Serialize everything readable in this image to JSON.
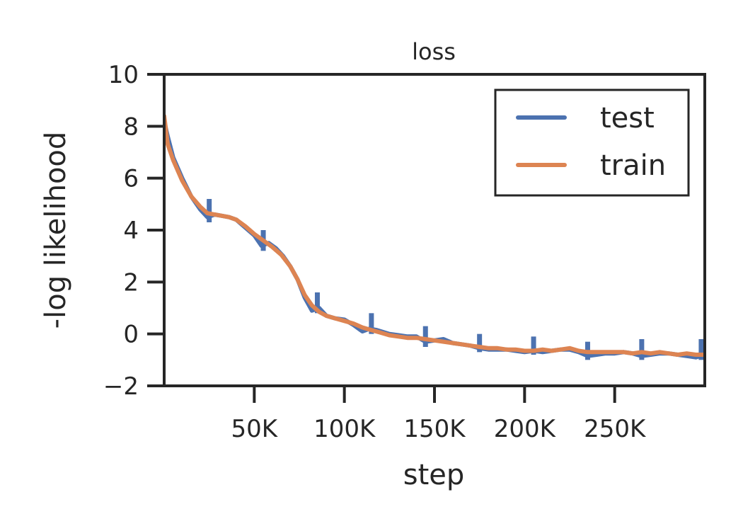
{
  "chart_data": {
    "type": "line",
    "title": "loss",
    "xlabel": "step",
    "ylabel": "-log likelihood",
    "xlim": [
      0,
      300000
    ],
    "ylim": [
      -2,
      10
    ],
    "grid": false,
    "legend_position": "top-right",
    "x_ticks": [
      {
        "value": 50000,
        "label": "50K"
      },
      {
        "value": 100000,
        "label": "100K"
      },
      {
        "value": 150000,
        "label": "150K"
      },
      {
        "value": 200000,
        "label": "200K"
      },
      {
        "value": 250000,
        "label": "250K"
      }
    ],
    "y_ticks": [
      {
        "value": -2,
        "label": "−2"
      },
      {
        "value": 0,
        "label": "0"
      },
      {
        "value": 2,
        "label": "2"
      },
      {
        "value": 4,
        "label": "4"
      },
      {
        "value": 6,
        "label": "6"
      },
      {
        "value": 8,
        "label": "8"
      },
      {
        "value": 10,
        "label": "10"
      }
    ],
    "series": [
      {
        "name": "test",
        "color": "#4c72b0",
        "x": [
          0,
          2000,
          5000,
          10000,
          15000,
          20000,
          24000,
          28000,
          32000,
          36000,
          40000,
          45000,
          50000,
          54000,
          58000,
          62000,
          66000,
          70000,
          74000,
          78000,
          82000,
          86000,
          90000,
          95000,
          100000,
          105000,
          110000,
          114000,
          118000,
          125000,
          130000,
          135000,
          140000,
          145000,
          150000,
          155000,
          160000,
          165000,
          170000,
          175000,
          180000,
          185000,
          190000,
          195000,
          200000,
          205000,
          210000,
          215000,
          220000,
          225000,
          230000,
          235000,
          240000,
          245000,
          250000,
          255000,
          260000,
          265000,
          270000,
          275000,
          280000,
          285000,
          290000,
          295000,
          300000
        ],
        "y": [
          8.2,
          7.6,
          6.8,
          6.0,
          5.3,
          4.8,
          4.5,
          4.6,
          4.55,
          4.5,
          4.4,
          4.1,
          3.8,
          3.4,
          3.5,
          3.3,
          3.0,
          2.6,
          2.1,
          1.4,
          0.9,
          1.0,
          0.7,
          0.6,
          0.55,
          0.35,
          0.1,
          0.2,
          0.15,
          0.0,
          -0.05,
          -0.1,
          -0.1,
          -0.3,
          -0.25,
          -0.2,
          -0.35,
          -0.4,
          -0.45,
          -0.55,
          -0.6,
          -0.6,
          -0.6,
          -0.65,
          -0.7,
          -0.65,
          -0.7,
          -0.65,
          -0.6,
          -0.6,
          -0.7,
          -0.85,
          -0.8,
          -0.75,
          -0.75,
          -0.7,
          -0.75,
          -0.85,
          -0.8,
          -0.75,
          -0.75,
          -0.8,
          -0.85,
          -0.9,
          -0.8
        ],
        "spikes": [
          {
            "x": 25000,
            "y_high": 5.2,
            "y_low": 4.3
          },
          {
            "x": 55000,
            "y_high": 4.0,
            "y_low": 3.2
          },
          {
            "x": 85000,
            "y_high": 1.6,
            "y_low": 0.8
          },
          {
            "x": 115000,
            "y_high": 0.8,
            "y_low": 0.0
          },
          {
            "x": 145000,
            "y_high": 0.3,
            "y_low": -0.5
          },
          {
            "x": 175000,
            "y_high": 0.0,
            "y_low": -0.7
          },
          {
            "x": 205000,
            "y_high": -0.1,
            "y_low": -0.8
          },
          {
            "x": 235000,
            "y_high": -0.3,
            "y_low": -1.0
          },
          {
            "x": 265000,
            "y_high": -0.2,
            "y_low": -1.0
          },
          {
            "x": 298000,
            "y_high": -0.2,
            "y_low": -1.0
          }
        ]
      },
      {
        "name": "train",
        "color": "#dd8452",
        "x": [
          0,
          2000,
          5000,
          10000,
          15000,
          20000,
          24000,
          28000,
          32000,
          36000,
          40000,
          45000,
          50000,
          55000,
          60000,
          65000,
          70000,
          74000,
          78000,
          82000,
          86000,
          90000,
          95000,
          100000,
          105000,
          110000,
          115000,
          120000,
          125000,
          130000,
          135000,
          140000,
          145000,
          150000,
          155000,
          160000,
          165000,
          170000,
          175000,
          180000,
          185000,
          190000,
          195000,
          200000,
          205000,
          210000,
          215000,
          220000,
          225000,
          230000,
          235000,
          240000,
          245000,
          250000,
          255000,
          260000,
          265000,
          270000,
          275000,
          280000,
          285000,
          290000,
          295000,
          300000
        ],
        "y": [
          8.4,
          7.3,
          6.7,
          5.9,
          5.3,
          4.9,
          4.65,
          4.6,
          4.55,
          4.5,
          4.4,
          4.15,
          3.85,
          3.6,
          3.35,
          3.05,
          2.6,
          2.1,
          1.5,
          1.1,
          0.85,
          0.7,
          0.6,
          0.5,
          0.4,
          0.25,
          0.15,
          0.05,
          -0.05,
          -0.1,
          -0.15,
          -0.15,
          -0.2,
          -0.25,
          -0.3,
          -0.35,
          -0.4,
          -0.45,
          -0.5,
          -0.55,
          -0.55,
          -0.6,
          -0.6,
          -0.65,
          -0.65,
          -0.6,
          -0.65,
          -0.6,
          -0.55,
          -0.65,
          -0.7,
          -0.7,
          -0.7,
          -0.7,
          -0.7,
          -0.75,
          -0.7,
          -0.75,
          -0.7,
          -0.75,
          -0.8,
          -0.75,
          -0.8,
          -0.8
        ]
      }
    ]
  }
}
